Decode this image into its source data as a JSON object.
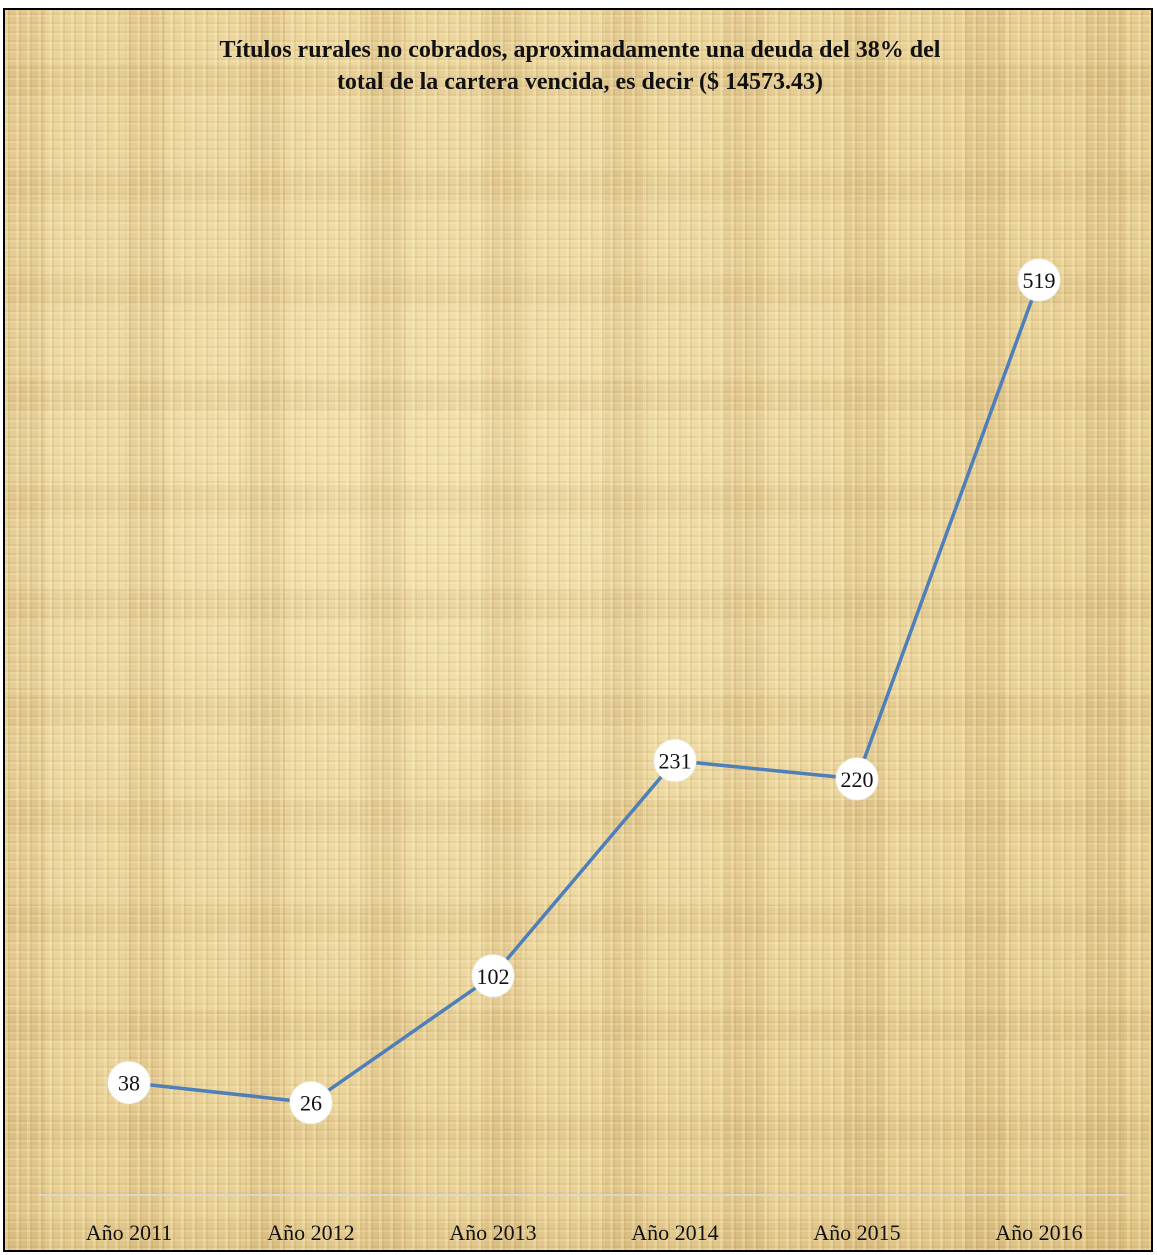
{
  "chart_data": {
    "type": "line",
    "title": "Títulos rurales no cobrados, aproximadamente una deuda del 38% del total de la cartera vencida, es decir ($ 14573.43)",
    "title_lines": [
      "Títulos rurales no cobrados, aproximadamente una deuda del 38% del",
      "total de la cartera vencida, es decir ($ 14573.43)"
    ],
    "categories": [
      "Año 2011",
      "Año 2012",
      "Año 2013",
      "Año 2014",
      "Año 2015",
      "Año 2016"
    ],
    "values": [
      38,
      26,
      102,
      231,
      220,
      519
    ],
    "xlabel": "",
    "ylabel": "",
    "ylim": [
      0,
      540
    ],
    "grid": false,
    "legend": "none",
    "data_labels": true,
    "colors": {
      "line": "#4f7fb9",
      "marker_fill": "#ffffff",
      "axis": "#d9d9d9",
      "frame_border": "#000000"
    }
  }
}
